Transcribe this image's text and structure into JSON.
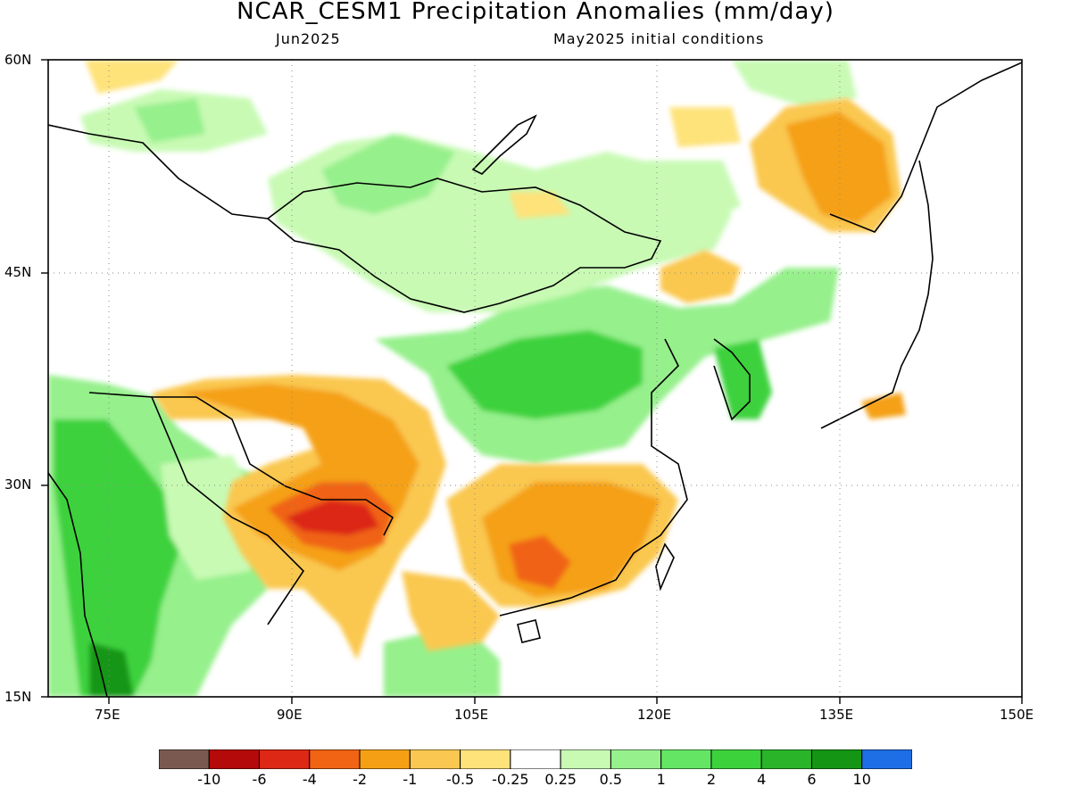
{
  "title": "NCAR_CESM1 Precipitation Anomalies (mm/day)",
  "subtitle_left": "Jun2025",
  "subtitle_right": "May2025 initial conditions",
  "map": {
    "lat_labels": [
      "60N",
      "45N",
      "30N",
      "15N"
    ],
    "lon_labels": [
      "75E",
      "90E",
      "105E",
      "120E",
      "135E",
      "150E"
    ],
    "lat_range": [
      15,
      60
    ],
    "lon_range": [
      70,
      150
    ],
    "grid": "dotted",
    "anomaly_regions": [
      {
        "region": "Tibet / SE Tibet",
        "category": "-4 to -6"
      },
      {
        "region": "South China (Guangxi/Guangdong)",
        "category": "-2 to -4"
      },
      {
        "region": "Yangtze / Hunan-Jiangxi",
        "category": "-1 to -2"
      },
      {
        "region": "Far East Russia near 135E 50N",
        "category": "-1 to -2"
      },
      {
        "region": "NE China near 123E 45N",
        "category": "-0.5 to -1"
      },
      {
        "region": "North China Plain / Loess Plateau",
        "category": "0.5 to 2"
      },
      {
        "region": "Korea",
        "category": "1 to 2"
      },
      {
        "region": "India",
        "category": "0.5 to 6"
      },
      {
        "region": "Mongolia",
        "category": "0.25 to 1"
      },
      {
        "region": "Central Japan",
        "category": "-0.5 to -1"
      }
    ]
  },
  "colorbar": {
    "colors": [
      "#7a5a50",
      "#b40a0a",
      "#dc2814",
      "#f06414",
      "#f5a014",
      "#fac850",
      "#fee27a",
      "#ffffff",
      "#c8fab4",
      "#96f08c",
      "#64e664",
      "#3cd23c",
      "#2ab42a",
      "#149614",
      "#1e6ee6"
    ],
    "labels": [
      "-10",
      "-6",
      "-4",
      "-2",
      "-1",
      "-0.5",
      "-0.25",
      "0.25",
      "0.5",
      "1",
      "2",
      "4",
      "6",
      "10"
    ]
  }
}
